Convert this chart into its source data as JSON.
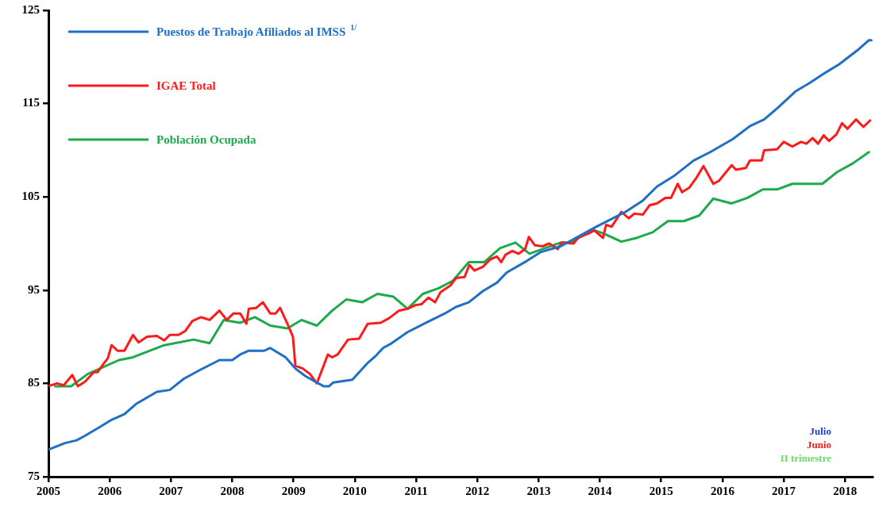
{
  "chart_data": {
    "type": "line",
    "xlim": [
      2005,
      2018.45
    ],
    "xticks": [
      2005,
      2006,
      2007,
      2008,
      2009,
      2010,
      2011,
      2012,
      2013,
      2014,
      2015,
      2016,
      2017,
      2018
    ],
    "ylim": [
      75,
      125
    ],
    "yticks": [
      75,
      85,
      95,
      105,
      115,
      125
    ],
    "grid": false,
    "legend": "top left",
    "marker": "none",
    "line_style": "solid",
    "annotations": [
      "Julio",
      "Junio",
      "II trimestre"
    ],
    "series": [
      {
        "name": "Puestos de Trabajo Afiliados al IMSS $^{1/}$",
        "color": "#1f6fc5",
        "x": [
          2005,
          2005.27,
          2005.46,
          2005.6,
          2005.83,
          2006.03,
          2006.24,
          2006.43,
          2006.77,
          2006.98,
          2007.21,
          2007.49,
          2007.79,
          2008.0,
          2008.13,
          2008.27,
          2008.52,
          2008.62,
          2008.87,
          2009.03,
          2009.19,
          2009.35,
          2009.49,
          2009.58,
          2009.65,
          2009.96,
          2010.21,
          2010.35,
          2010.46,
          2010.6,
          2010.86,
          2011.13,
          2011.47,
          2011.65,
          2011.86,
          2012.09,
          2012.32,
          2012.48,
          2012.8,
          2013.04,
          2013.36,
          2013.94,
          2014.42,
          2014.7,
          2014.93,
          2015.2,
          2015.53,
          2015.8,
          2016.17,
          2016.45,
          2016.68,
          2016.91,
          2017.19,
          2017.42,
          2017.7,
          2017.9,
          2018.2,
          2018.39,
          2018.43
        ],
        "values": [
          77.9,
          78.6,
          78.9,
          79.4,
          80.3,
          81.1,
          81.7,
          82.8,
          84.1,
          84.3,
          85.5,
          86.5,
          87.5,
          87.5,
          88.1,
          88.5,
          88.5,
          88.8,
          87.8,
          86.6,
          85.8,
          85.2,
          84.7,
          84.7,
          85.1,
          85.4,
          87.2,
          88.0,
          88.8,
          89.3,
          90.5,
          91.4,
          92.5,
          93.2,
          93.7,
          94.9,
          95.8,
          96.9,
          98.1,
          99.1,
          99.7,
          101.8,
          103.4,
          104.6,
          106.1,
          107.2,
          108.9,
          109.8,
          111.2,
          112.6,
          113.3,
          114.6,
          116.3,
          117.2,
          118.4,
          119.2,
          120.7,
          121.8,
          121.8
        ]
      },
      {
        "name": "IGAE Total",
        "color": "#ff1a1a",
        "x": [
          2005.0,
          2005.14,
          2005.25,
          2005.39,
          2005.48,
          2005.6,
          2005.74,
          2005.8,
          2005.9,
          2005.97,
          2006.03,
          2006.13,
          2006.24,
          2006.38,
          2006.47,
          2006.61,
          2006.77,
          2006.89,
          2006.98,
          2007.12,
          2007.23,
          2007.35,
          2007.49,
          2007.63,
          2007.79,
          2007.91,
          2008.02,
          2008.13,
          2008.23,
          2008.27,
          2008.39,
          2008.5,
          2008.62,
          2008.71,
          2008.78,
          2008.9,
          2008.99,
          2009.03,
          2009.15,
          2009.27,
          2009.38,
          2009.56,
          2009.63,
          2009.72,
          2009.89,
          2010.07,
          2010.21,
          2010.42,
          2010.56,
          2010.72,
          2010.86,
          2010.99,
          2011.09,
          2011.2,
          2011.31,
          2011.4,
          2011.56,
          2011.65,
          2011.79,
          2011.87,
          2011.95,
          2012.09,
          2012.21,
          2012.32,
          2012.39,
          2012.46,
          2012.57,
          2012.67,
          2012.78,
          2012.84,
          2012.94,
          2013.06,
          2013.17,
          2013.31,
          2013.38,
          2013.57,
          2013.64,
          2013.82,
          2013.91,
          2014.05,
          2014.1,
          2014.19,
          2014.35,
          2014.47,
          2014.56,
          2014.7,
          2014.81,
          2014.93,
          2015.07,
          2015.16,
          2015.27,
          2015.34,
          2015.46,
          2015.57,
          2015.69,
          2015.85,
          2015.94,
          2016.15,
          2016.22,
          2016.38,
          2016.45,
          2016.64,
          2016.68,
          2016.89,
          2017.0,
          2017.14,
          2017.28,
          2017.37,
          2017.47,
          2017.56,
          2017.65,
          2017.74,
          2017.86,
          2017.95,
          2018.04,
          2018.18,
          2018.3,
          2018.41
        ],
        "values": [
          84.7,
          85.0,
          84.8,
          85.9,
          84.7,
          85.2,
          86.2,
          86.2,
          87.1,
          87.7,
          89.1,
          88.5,
          88.5,
          90.2,
          89.4,
          90.0,
          90.1,
          89.6,
          90.2,
          90.2,
          90.6,
          91.7,
          92.1,
          91.8,
          92.8,
          91.8,
          92.5,
          92.5,
          91.4,
          93.0,
          93.1,
          93.7,
          92.5,
          92.5,
          93.1,
          91.4,
          90.0,
          86.9,
          86.6,
          86.0,
          85.0,
          88.1,
          87.8,
          88.1,
          89.7,
          89.8,
          91.4,
          91.5,
          92.0,
          92.8,
          93.0,
          93.4,
          93.5,
          94.2,
          93.7,
          94.8,
          95.5,
          96.3,
          96.4,
          97.7,
          97.1,
          97.5,
          98.3,
          98.6,
          98.0,
          98.8,
          99.2,
          98.9,
          99.4,
          100.7,
          99.8,
          99.7,
          100.0,
          99.4,
          100.1,
          100.0,
          100.6,
          101.1,
          101.4,
          100.6,
          102.0,
          101.8,
          103.4,
          102.7,
          103.2,
          103.1,
          104.1,
          104.3,
          104.9,
          104.9,
          106.4,
          105.5,
          106.0,
          107.0,
          108.3,
          106.4,
          106.7,
          108.4,
          107.9,
          108.1,
          108.9,
          108.9,
          110.0,
          110.1,
          110.9,
          110.4,
          110.9,
          110.7,
          111.3,
          110.7,
          111.6,
          111.0,
          111.7,
          112.9,
          112.3,
          113.3,
          112.5,
          113.2
        ]
      },
      {
        "name": "Población Ocupada",
        "color": "#1daa4a",
        "x": [
          2005.11,
          2005.37,
          2005.64,
          2006.15,
          2006.38,
          2006.89,
          2007.37,
          2007.63,
          2007.86,
          2008.13,
          2008.37,
          2008.62,
          2008.9,
          2009.13,
          2009.38,
          2009.63,
          2009.86,
          2010.12,
          2010.37,
          2010.63,
          2010.86,
          2011.11,
          2011.37,
          2011.6,
          2011.86,
          2012.11,
          2012.37,
          2012.62,
          2012.85,
          2013.36,
          2013.54,
          2013.87,
          2014.05,
          2014.35,
          2014.6,
          2014.86,
          2015.11,
          2015.37,
          2015.62,
          2015.85,
          2016.15,
          2016.41,
          2016.66,
          2016.89,
          2017.14,
          2017.63,
          2017.88,
          2018.13,
          2018.39
        ],
        "values": [
          84.7,
          84.7,
          86.0,
          87.5,
          87.8,
          89.1,
          89.7,
          89.3,
          91.8,
          91.5,
          92.1,
          91.2,
          90.9,
          91.8,
          91.2,
          92.8,
          94.0,
          93.7,
          94.6,
          94.3,
          93.0,
          94.6,
          95.2,
          96.0,
          98.0,
          98.0,
          99.5,
          100.1,
          98.9,
          100.1,
          100.1,
          101.5,
          101.1,
          100.2,
          100.6,
          101.2,
          102.4,
          102.4,
          103.0,
          104.8,
          104.3,
          104.9,
          105.8,
          105.8,
          106.4,
          106.4,
          107.7,
          108.6,
          109.8
        ]
      }
    ]
  }
}
